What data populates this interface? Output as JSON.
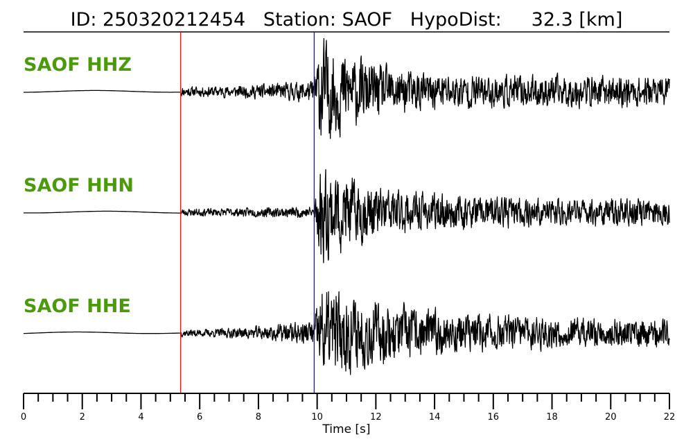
{
  "chart_data": {
    "type": "line",
    "title": "ID: 250320212454   Station: SAOF   HypoDist:     32.3 [km]",
    "xlabel": "Time [s]",
    "xlim": [
      0,
      22
    ],
    "xticks": [
      "0",
      "2",
      "4",
      "6",
      "8",
      "10",
      "12",
      "14",
      "16",
      "18",
      "20",
      "22"
    ],
    "minor_tick_step": 0.5,
    "grid": false,
    "legend": "none",
    "colors": {
      "trace": "#000000",
      "label": "#4a9a0c",
      "p_pick": "#e31a1c",
      "s_pick": "#1f1fbf",
      "axis": "#000000"
    },
    "picks": [
      {
        "phase": "P",
        "time": 5.35
      },
      {
        "phase": "S",
        "time": 9.9
      }
    ],
    "traces": [
      {
        "label": "SAOF HHZ",
        "noise_amp": 0.08,
        "p_amp": 0.18,
        "s_amp": 1.0,
        "coda_amp": 0.25,
        "decay": 0.3,
        "seed": 11
      },
      {
        "label": "SAOF HHN",
        "noise_amp": 0.06,
        "p_amp": 0.1,
        "s_amp": 0.9,
        "coda_amp": 0.22,
        "decay": 0.25,
        "seed": 23
      },
      {
        "label": "SAOF HHE",
        "noise_amp": 0.06,
        "p_amp": 0.22,
        "s_amp": 0.85,
        "coda_amp": 0.22,
        "decay": 0.15,
        "seed": 37
      }
    ]
  }
}
